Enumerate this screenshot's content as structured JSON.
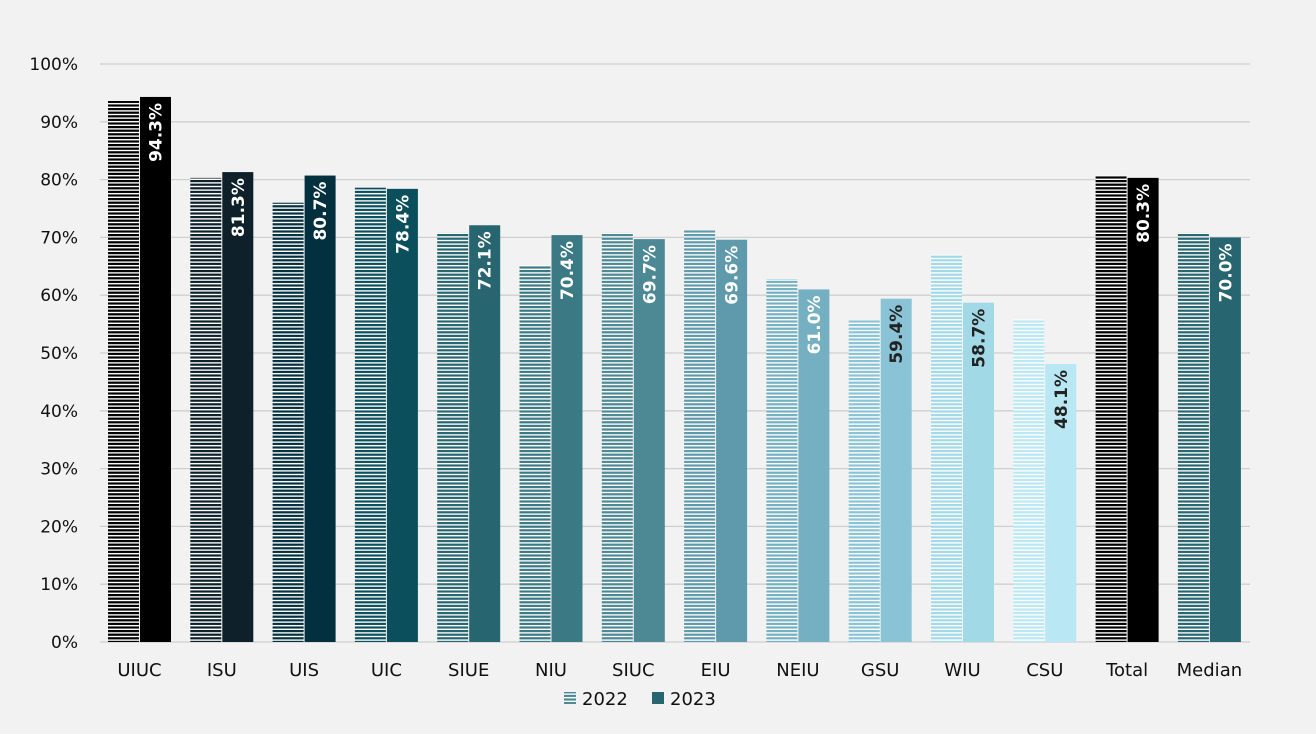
{
  "chart_data": {
    "type": "bar",
    "categories": [
      "UIUC",
      "ISU",
      "UIS",
      "UIC",
      "SIUE",
      "NIU",
      "SIUC",
      "EIU",
      "NEIU",
      "GSU",
      "WIU",
      "CSU",
      "Total",
      "Median"
    ],
    "series": [
      {
        "name": "2022",
        "values": [
          93.6,
          80.3,
          76.0,
          78.6,
          70.8,
          65.2,
          70.8,
          71.3,
          62.8,
          55.7,
          67.0,
          55.8,
          80.7,
          70.8
        ],
        "data_labels": null,
        "pattern": "horizontal-stripes"
      },
      {
        "name": "2023",
        "values": [
          94.3,
          81.3,
          80.7,
          78.4,
          72.1,
          70.4,
          69.7,
          69.6,
          61.0,
          59.4,
          58.7,
          48.1,
          80.3,
          70.0
        ],
        "data_labels": [
          "94.3%",
          "81.3%",
          "80.7%",
          "78.4%",
          "72.1%",
          "70.4%",
          "69.7%",
          "69.6%",
          "61.0%",
          "59.4%",
          "58.7%",
          "48.1%",
          "80.3%",
          "70.0%"
        ],
        "pattern": "solid"
      }
    ],
    "category_colors": [
      "#000000",
      "#0e2029",
      "#03303f",
      "#0b4f5c",
      "#276570",
      "#3b7985",
      "#4d8895",
      "#5e9aab",
      "#74b0c1",
      "#8ac3d5",
      "#a2d9e7",
      "#b9e7f3",
      "#000000",
      "#276570"
    ],
    "label_colors": [
      "#ffffff",
      "#ffffff",
      "#ffffff",
      "#ffffff",
      "#ffffff",
      "#ffffff",
      "#ffffff",
      "#ffffff",
      "#ffffff",
      "#222222",
      "#222222",
      "#222222",
      "#ffffff",
      "#ffffff"
    ],
    "y_ticks": [
      "0%",
      "10%",
      "20%",
      "30%",
      "40%",
      "50%",
      "60%",
      "70%",
      "80%",
      "90%",
      "100%"
    ],
    "ylim": [
      0,
      100
    ],
    "grid": true,
    "legend_position": "bottom-center",
    "legend": {
      "items": [
        {
          "label": "2022",
          "color": "#4d8895",
          "pattern": "stripes"
        },
        {
          "label": "2023",
          "color": "#276570",
          "pattern": "solid"
        }
      ]
    },
    "title": "",
    "xlabel": "",
    "ylabel": ""
  }
}
